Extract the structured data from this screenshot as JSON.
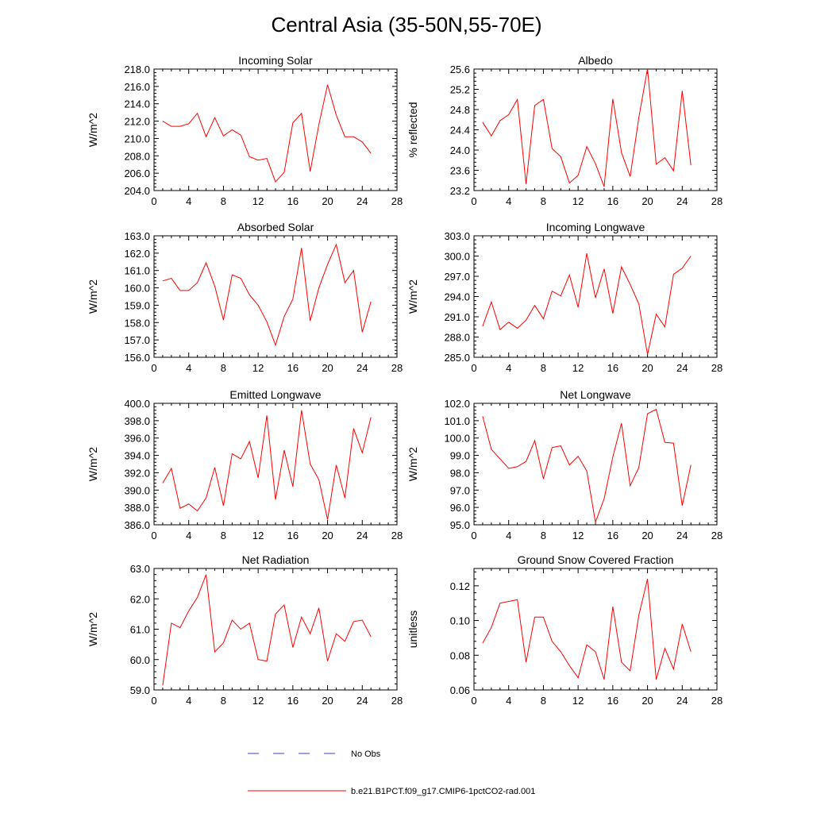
{
  "title": "Central Asia (35-50N,55-70E)",
  "legend": {
    "obs_label": "No Obs",
    "obs_color": "#3344cc",
    "model_label": "b.e21.B1PCT.f09_g17.CMIP6-1pctCO2-rad.001",
    "model_color": "#ff0000"
  },
  "chart_data": [
    {
      "type": "line",
      "title": "Incoming Solar",
      "ylabel": "W/m^2",
      "xlim": [
        0,
        28
      ],
      "xticks": [
        "0",
        "4",
        "8",
        "12",
        "16",
        "20",
        "24",
        "28"
      ],
      "ylim": [
        204,
        218
      ],
      "yticks": [
        "204.0",
        "206.0",
        "208.0",
        "210.0",
        "212.0",
        "214.0",
        "216.0",
        "218.0"
      ],
      "x": [
        1,
        2,
        3,
        4,
        5,
        6,
        7,
        8,
        9,
        10,
        11,
        12,
        13,
        14,
        15,
        16,
        17,
        18,
        19,
        20,
        21,
        22,
        23,
        24,
        25
      ],
      "series": [
        {
          "values": [
            212.0,
            211.4,
            211.4,
            211.7,
            212.9,
            210.2,
            212.4,
            210.3,
            211.0,
            210.4,
            207.9,
            207.5,
            207.7,
            205.0,
            206.1,
            211.8,
            212.9,
            206.2,
            211.6,
            216.2,
            212.7,
            210.2,
            210.2,
            209.6,
            208.3
          ]
        }
      ]
    },
    {
      "type": "line",
      "title": "Albedo",
      "ylabel": "% reflected",
      "xlim": [
        0,
        28
      ],
      "xticks": [
        "0",
        "4",
        "8",
        "12",
        "16",
        "20",
        "24",
        "28"
      ],
      "ylim": [
        23.2,
        25.6
      ],
      "yticks": [
        "23.2",
        "23.6",
        "24.0",
        "24.4",
        "24.8",
        "25.2",
        "25.6"
      ],
      "x": [
        1,
        2,
        3,
        4,
        5,
        6,
        7,
        8,
        9,
        10,
        11,
        12,
        13,
        14,
        15,
        16,
        17,
        18,
        19,
        20,
        21,
        22,
        23,
        24,
        25
      ],
      "series": [
        {
          "values": [
            24.55,
            24.28,
            24.58,
            24.7,
            25.0,
            23.33,
            24.88,
            25.0,
            24.03,
            23.87,
            23.35,
            23.5,
            24.07,
            23.73,
            23.28,
            25.01,
            23.95,
            23.48,
            24.64,
            25.61,
            23.72,
            23.85,
            23.59,
            25.17,
            23.7
          ]
        }
      ]
    },
    {
      "type": "line",
      "title": "Absorbed Solar",
      "ylabel": "W/m^2",
      "xlim": [
        0,
        28
      ],
      "xticks": [
        "0",
        "4",
        "8",
        "12",
        "16",
        "20",
        "24",
        "28"
      ],
      "ylim": [
        156,
        163
      ],
      "yticks": [
        "156.0",
        "157.0",
        "158.0",
        "159.0",
        "160.0",
        "161.0",
        "162.0",
        "163.0"
      ],
      "x": [
        1,
        2,
        3,
        4,
        5,
        6,
        7,
        8,
        9,
        10,
        11,
        12,
        13,
        14,
        15,
        16,
        17,
        18,
        19,
        20,
        21,
        22,
        23,
        24,
        25
      ],
      "series": [
        {
          "values": [
            160.4,
            160.55,
            159.85,
            159.85,
            160.3,
            161.45,
            160.1,
            158.15,
            160.75,
            160.55,
            159.6,
            159.0,
            158.05,
            156.7,
            158.35,
            159.35,
            162.3,
            158.1,
            160.0,
            161.35,
            162.5,
            160.3,
            161.0,
            157.45,
            159.2
          ]
        }
      ]
    },
    {
      "type": "line",
      "title": "Incoming Longwave",
      "ylabel": "W/m^2",
      "xlim": [
        0,
        28
      ],
      "xticks": [
        "0",
        "4",
        "8",
        "12",
        "16",
        "20",
        "24",
        "28"
      ],
      "ylim": [
        285,
        303
      ],
      "yticks": [
        "285.0",
        "288.0",
        "291.0",
        "294.0",
        "297.0",
        "300.0",
        "303.0"
      ],
      "x": [
        1,
        2,
        3,
        4,
        5,
        6,
        7,
        8,
        9,
        10,
        11,
        12,
        13,
        14,
        15,
        16,
        17,
        18,
        19,
        20,
        21,
        22,
        23,
        24,
        25
      ],
      "series": [
        {
          "values": [
            289.6,
            293.2,
            289.1,
            290.2,
            289.3,
            290.5,
            292.7,
            290.7,
            294.8,
            294.1,
            297.2,
            292.4,
            300.4,
            293.8,
            298.1,
            291.5,
            298.4,
            295.8,
            292.9,
            285.4,
            291.4,
            289.5,
            297.3,
            298.2,
            300.0
          ]
        }
      ]
    },
    {
      "type": "line",
      "title": "Emitted Longwave",
      "ylabel": "W/m^2",
      "xlim": [
        0,
        28
      ],
      "xticks": [
        "0",
        "4",
        "8",
        "12",
        "16",
        "20",
        "24",
        "28"
      ],
      "ylim": [
        386,
        400
      ],
      "yticks": [
        "386.0",
        "388.0",
        "390.0",
        "392.0",
        "394.0",
        "396.0",
        "398.0",
        "400.0"
      ],
      "x": [
        1,
        2,
        3,
        4,
        5,
        6,
        7,
        8,
        9,
        10,
        11,
        12,
        13,
        14,
        15,
        16,
        17,
        18,
        19,
        20,
        21,
        22,
        23,
        24,
        25
      ],
      "series": [
        {
          "values": [
            390.8,
            392.5,
            387.9,
            388.4,
            387.6,
            389.1,
            392.6,
            388.2,
            394.2,
            393.6,
            395.6,
            391.4,
            398.6,
            388.9,
            394.6,
            390.4,
            399.2,
            393.0,
            391.2,
            386.6,
            392.9,
            389.1,
            397.1,
            394.3,
            398.4
          ]
        }
      ]
    },
    {
      "type": "line",
      "title": "Net Longwave",
      "ylabel": "W/m^2",
      "xlim": [
        0,
        28
      ],
      "xticks": [
        "0",
        "4",
        "8",
        "12",
        "16",
        "20",
        "24",
        "28"
      ],
      "ylim": [
        95,
        102
      ],
      "yticks": [
        "95.0",
        "96.0",
        "97.0",
        "98.0",
        "99.0",
        "100.0",
        "101.0",
        "102.0"
      ],
      "x": [
        1,
        2,
        3,
        4,
        5,
        6,
        7,
        8,
        9,
        10,
        11,
        12,
        13,
        14,
        15,
        16,
        17,
        18,
        19,
        20,
        21,
        22,
        23,
        24,
        25
      ],
      "series": [
        {
          "values": [
            101.25,
            99.35,
            98.8,
            98.25,
            98.35,
            98.65,
            99.85,
            97.65,
            99.45,
            99.55,
            98.45,
            98.95,
            98.1,
            95.15,
            96.5,
            98.9,
            100.85,
            97.25,
            98.3,
            101.4,
            101.65,
            99.75,
            99.7,
            96.1,
            98.45
          ]
        }
      ]
    },
    {
      "type": "line",
      "title": "Net Radiation",
      "ylabel": "W/m^2",
      "xlim": [
        0,
        28
      ],
      "xticks": [
        "0",
        "4",
        "8",
        "12",
        "16",
        "20",
        "24",
        "28"
      ],
      "ylim": [
        59,
        63
      ],
      "yticks": [
        "59.0",
        "60.0",
        "61.0",
        "62.0",
        "63.0"
      ],
      "x": [
        1,
        2,
        3,
        4,
        5,
        6,
        7,
        8,
        9,
        10,
        11,
        12,
        13,
        14,
        15,
        16,
        17,
        18,
        19,
        20,
        21,
        22,
        23,
        24,
        25
      ],
      "series": [
        {
          "values": [
            59.15,
            61.2,
            61.05,
            61.6,
            62.05,
            62.8,
            60.25,
            60.55,
            61.3,
            61.0,
            61.2,
            60.0,
            59.95,
            61.5,
            61.8,
            60.4,
            61.4,
            60.85,
            61.7,
            59.95,
            60.85,
            60.6,
            61.25,
            61.3,
            60.75
          ]
        }
      ]
    },
    {
      "type": "line",
      "title": "Ground Snow Covered Fraction",
      "ylabel": "unitless",
      "xlim": [
        0,
        28
      ],
      "xticks": [
        "0",
        "4",
        "8",
        "12",
        "16",
        "20",
        "24",
        "28"
      ],
      "ylim": [
        0.06,
        0.13
      ],
      "yticks": [
        "0.06",
        "0.08",
        "0.10",
        "0.12"
      ],
      "x": [
        1,
        2,
        3,
        4,
        5,
        6,
        7,
        8,
        9,
        10,
        11,
        12,
        13,
        14,
        15,
        16,
        17,
        18,
        19,
        20,
        21,
        22,
        23,
        24,
        25
      ],
      "series": [
        {
          "values": [
            0.087,
            0.096,
            0.11,
            0.111,
            0.112,
            0.076,
            0.102,
            0.102,
            0.088,
            0.082,
            0.074,
            0.067,
            0.086,
            0.082,
            0.066,
            0.108,
            0.076,
            0.071,
            0.103,
            0.124,
            0.066,
            0.084,
            0.072,
            0.098,
            0.082
          ]
        }
      ]
    }
  ]
}
